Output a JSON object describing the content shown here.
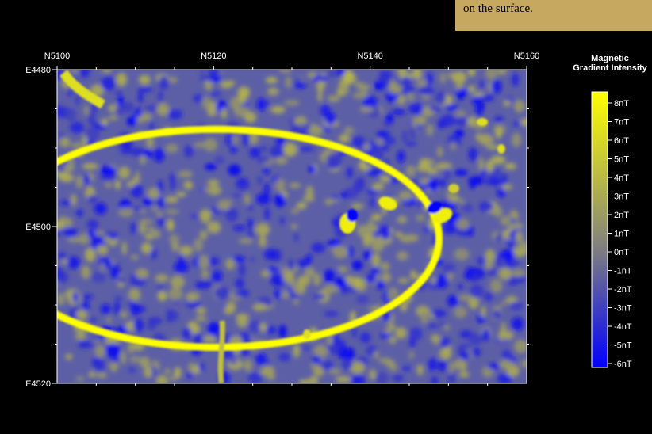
{
  "caption": {
    "line1": "",
    "line2": "on the surface."
  },
  "chart_data": {
    "type": "heatmap",
    "title": "",
    "x": {
      "ticks": [
        "N5100",
        "N5120",
        "N5140",
        "N5160"
      ],
      "range": [
        5100,
        5160
      ]
    },
    "y": {
      "ticks": [
        "E4480",
        "E4500",
        "E4520"
      ],
      "range": [
        4480,
        4520
      ]
    },
    "colorbar": {
      "title_line1": "Magnetic",
      "title_line2": "Gradient Intensity",
      "labels": [
        "8nT",
        "7nT",
        "6nT",
        "5nT",
        "4nT",
        "3nT",
        "2nT",
        "1nT",
        "0nT",
        "-1nT",
        "-2nT",
        "-3nT",
        "-4nT",
        "-5nT",
        "-6nT"
      ],
      "range": [
        -6,
        8
      ],
      "colors": {
        "low": "#0000ff",
        "mid": "#7f7f7f",
        "high": "#ffff00"
      }
    },
    "features": [
      {
        "name": "ring",
        "value": 8
      },
      {
        "name": "anomaly-1",
        "value": 7
      },
      {
        "name": "anomaly-2",
        "value": 7
      },
      {
        "name": "anomaly-3",
        "value": 7
      }
    ],
    "grid": false
  }
}
